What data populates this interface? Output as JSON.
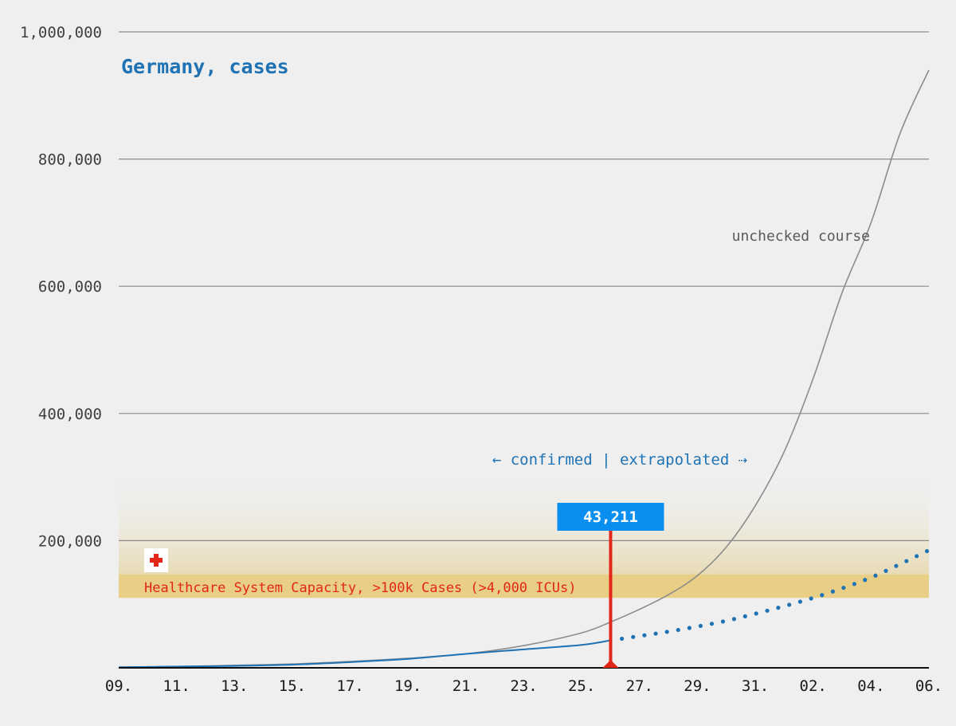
{
  "chart_data": {
    "type": "line",
    "title": "Germany, cases",
    "y_ticks": [
      "1,000,000",
      "800,000",
      "600,000",
      "400,000",
      "200,000"
    ],
    "y_tick_values": [
      1000000,
      800000,
      600000,
      400000,
      200000
    ],
    "ylim": [
      0,
      1000000
    ],
    "x_ticks": [
      "09.",
      "11.",
      "13.",
      "15.",
      "17.",
      "19.",
      "21.",
      "23.",
      "25.",
      "27.",
      "29.",
      "31.",
      "02.",
      "04.",
      "06."
    ],
    "x_tick_days": [
      0,
      2,
      4,
      6,
      8,
      10,
      12,
      14,
      16,
      18,
      20,
      22,
      24,
      26,
      28
    ],
    "xlim_days": [
      0,
      28
    ],
    "grid": "horizontal",
    "series": [
      {
        "label": "unchecked course",
        "color": "#8c8c8c",
        "style": "solid",
        "x": [
          0,
          2,
          4,
          6,
          8,
          10,
          12,
          14,
          16,
          17,
          18,
          19,
          20,
          21,
          22,
          23,
          24,
          25,
          26,
          27,
          28
        ],
        "y": [
          1000,
          2000,
          4000,
          6000,
          10000,
          15000,
          22000,
          35000,
          55000,
          72000,
          92000,
          115000,
          145000,
          190000,
          255000,
          340000,
          455000,
          590000,
          700000,
          840000,
          940000
        ]
      },
      {
        "label": "confirmed",
        "color": "#1f73b5",
        "style": "solid",
        "x": [
          0,
          2,
          4,
          6,
          8,
          10,
          12,
          14,
          16,
          17
        ],
        "y": [
          1000,
          2000,
          3000,
          5000,
          9000,
          14000,
          22000,
          29000,
          36000,
          43211
        ]
      },
      {
        "label": "extrapolated",
        "color": "#1f73b5",
        "style": "dotted",
        "x": [
          17,
          18,
          19,
          20,
          21,
          22,
          23,
          24,
          25,
          26,
          27,
          28
        ],
        "y": [
          43211,
          50000,
          57000,
          65000,
          74000,
          85000,
          97000,
          110000,
          125000,
          142000,
          163000,
          185000
        ]
      }
    ],
    "capacity_band": {
      "y_from": 110000,
      "y_to": 147000,
      "fade_to": 310000,
      "color": "#e8cf85"
    },
    "capacity_label": "Healthcare System Capacity, >100k Cases (>4,000 ICUs)",
    "confirmed_extrapolated_label": "← confirmed | extrapolated ⇢",
    "unchecked_label": "unchecked course",
    "callout": {
      "value": "43,211",
      "x_day": 17,
      "y_value": 43211,
      "box_color": "#0a8ef0",
      "line_color": "#e3261a"
    },
    "icon": "red-cross-icon"
  }
}
